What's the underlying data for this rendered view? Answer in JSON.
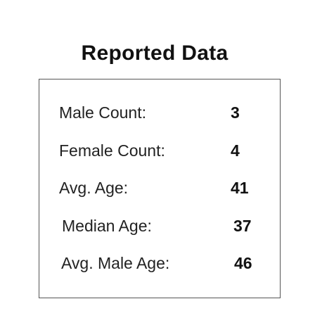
{
  "title": "Reported Data",
  "stats": [
    {
      "label": "Male Count:",
      "value": "3"
    },
    {
      "label": "Female Count:",
      "value": "4"
    },
    {
      "label": "Avg. Age:",
      "value": "41"
    },
    {
      "label": "Median Age:",
      "value": "37"
    },
    {
      "label": "Avg. Male Age:",
      "value": "46"
    }
  ]
}
